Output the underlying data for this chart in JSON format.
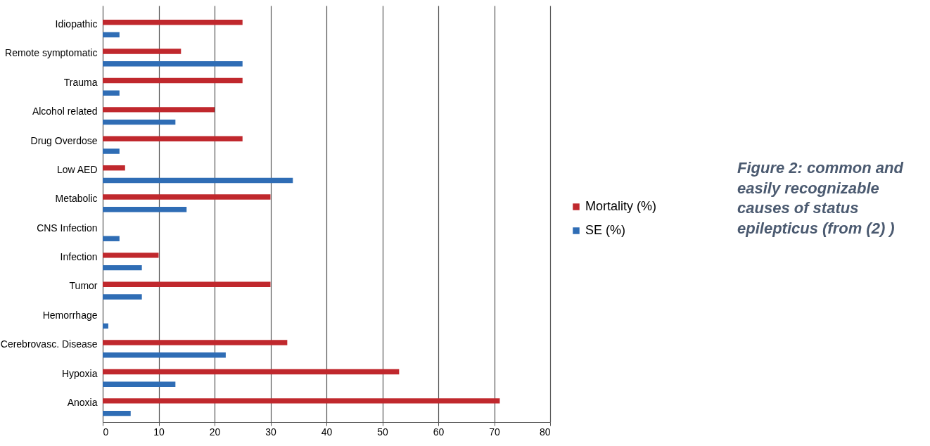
{
  "chart_data": {
    "type": "bar",
    "orientation": "horizontal",
    "categories": [
      "Idiopathic",
      "Remote symptomatic",
      "Trauma",
      "Alcohol related",
      "Drug Overdose",
      "Low AED",
      "Metabolic",
      "CNS Infection",
      "Infection",
      "Tumor",
      "Hemorrhage",
      "Cerebrovasc. Disease",
      "Hypoxia",
      "Anoxia"
    ],
    "series": [
      {
        "name": "Mortality (%)",
        "color": "#c0282d",
        "values": [
          25,
          14,
          25,
          20,
          25,
          4,
          30,
          null,
          10,
          30,
          null,
          33,
          53,
          71
        ]
      },
      {
        "name": "SE (%)",
        "color": "#2f6db5",
        "values": [
          3,
          25,
          3,
          13,
          3,
          34,
          15,
          3,
          7,
          7,
          1,
          22,
          13,
          5
        ]
      }
    ],
    "xlim": [
      0,
      80
    ],
    "xticks": [
      0,
      10,
      20,
      30,
      40,
      50,
      60,
      70,
      80
    ],
    "grid": "x",
    "legend": "right",
    "annotations": [
      "Figure 2: common and easily recognizable causes of status epilepticus (from (2) )"
    ]
  }
}
